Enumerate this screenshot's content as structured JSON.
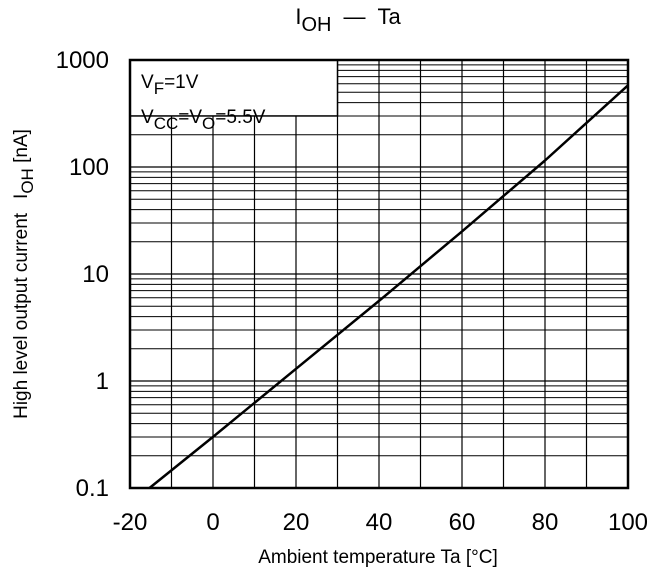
{
  "chart_data": {
    "type": "line",
    "title": "I_OH − Ta",
    "title_parts": {
      "main": "I",
      "sub": "OH",
      "dash": "—",
      "rest": "Ta"
    },
    "xlabel": "Ambient temperature Ta [°C]",
    "ylabel": "High level output current",
    "ylabel_unit_parts": {
      "main": "I",
      "sub": "OH",
      "rest": " [nA]"
    },
    "xlim": [
      -20,
      100
    ],
    "ylim": [
      0.1,
      1000
    ],
    "yscale": "log",
    "grid": true,
    "x_ticks": [
      -20,
      0,
      20,
      40,
      60,
      80,
      100
    ],
    "x_tick_labels": [
      "-20",
      "0",
      "20",
      "40",
      "60",
      "80",
      "100"
    ],
    "y_ticks": [
      0.1,
      1,
      10,
      100,
      1000
    ],
    "y_tick_labels": [
      "0.1",
      "1",
      "10",
      "100",
      "1000"
    ],
    "series": [
      {
        "x": [
          -15.3,
          0,
          20,
          40,
          60,
          80,
          100
        ],
        "y": [
          0.1,
          0.3,
          1.3,
          5.6,
          25,
          115,
          580
        ]
      }
    ],
    "annotation_lines": [
      [
        {
          "t": "V",
          "sub": false
        },
        {
          "t": "F",
          "sub": true
        },
        {
          "t": "=1V",
          "sub": false
        }
      ],
      [
        {
          "t": "V",
          "sub": false
        },
        {
          "t": "CC",
          "sub": true
        },
        {
          "t": "=V",
          "sub": false
        },
        {
          "t": "O",
          "sub": true
        },
        {
          "t": "=5.5V",
          "sub": false
        }
      ]
    ],
    "colors": {
      "line": "#000000",
      "grid": "#000000",
      "background": "#ffffff"
    }
  }
}
